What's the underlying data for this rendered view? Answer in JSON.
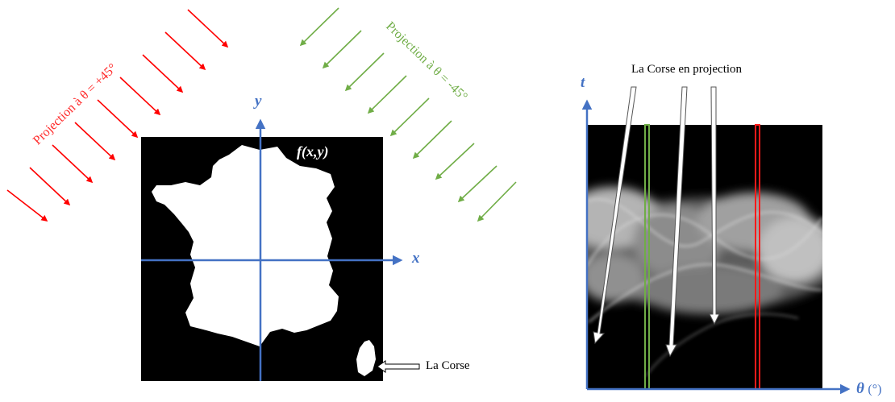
{
  "left_figure": {
    "red_projection_label": "Projection à θ = +45°",
    "green_projection_label": "Projection à θ = -45°",
    "function_label": "f(x,y)",
    "x_axis_label": "x",
    "y_axis_label": "y",
    "corsica_label": "La Corse"
  },
  "right_figure": {
    "title": "La Corse en projection",
    "t_axis_label": "t",
    "theta_axis_label": "θ",
    "theta_unit": "(°)"
  },
  "colors": {
    "red_projection": "#ff2a2a",
    "green_projection": "#70ad47",
    "axis": "#4472c4",
    "background_image": "#000000"
  }
}
